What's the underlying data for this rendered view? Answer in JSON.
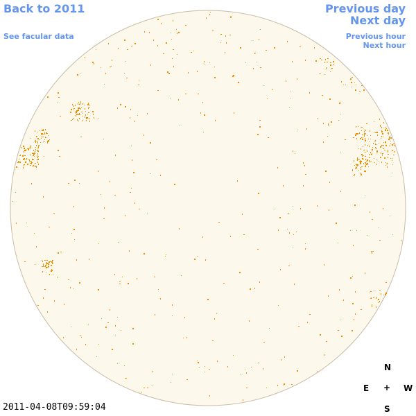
{
  "nav": {
    "back": "Back to 2011",
    "facular": "See facular data",
    "prev_day": "Previous day",
    "next_day": "Next day",
    "prev_hour": "Previous hour",
    "next_hour": "Next hour"
  },
  "timestamp": "2011-04-08T09:59:04",
  "compass": {
    "north": "N",
    "south": "S",
    "east": "E",
    "west": "W",
    "center": "+"
  },
  "colors": {
    "link": "#6495ed",
    "disk_fill": "#fdf8ec",
    "disk_edge": "#c8bca6",
    "facula": "#f08c00"
  }
}
